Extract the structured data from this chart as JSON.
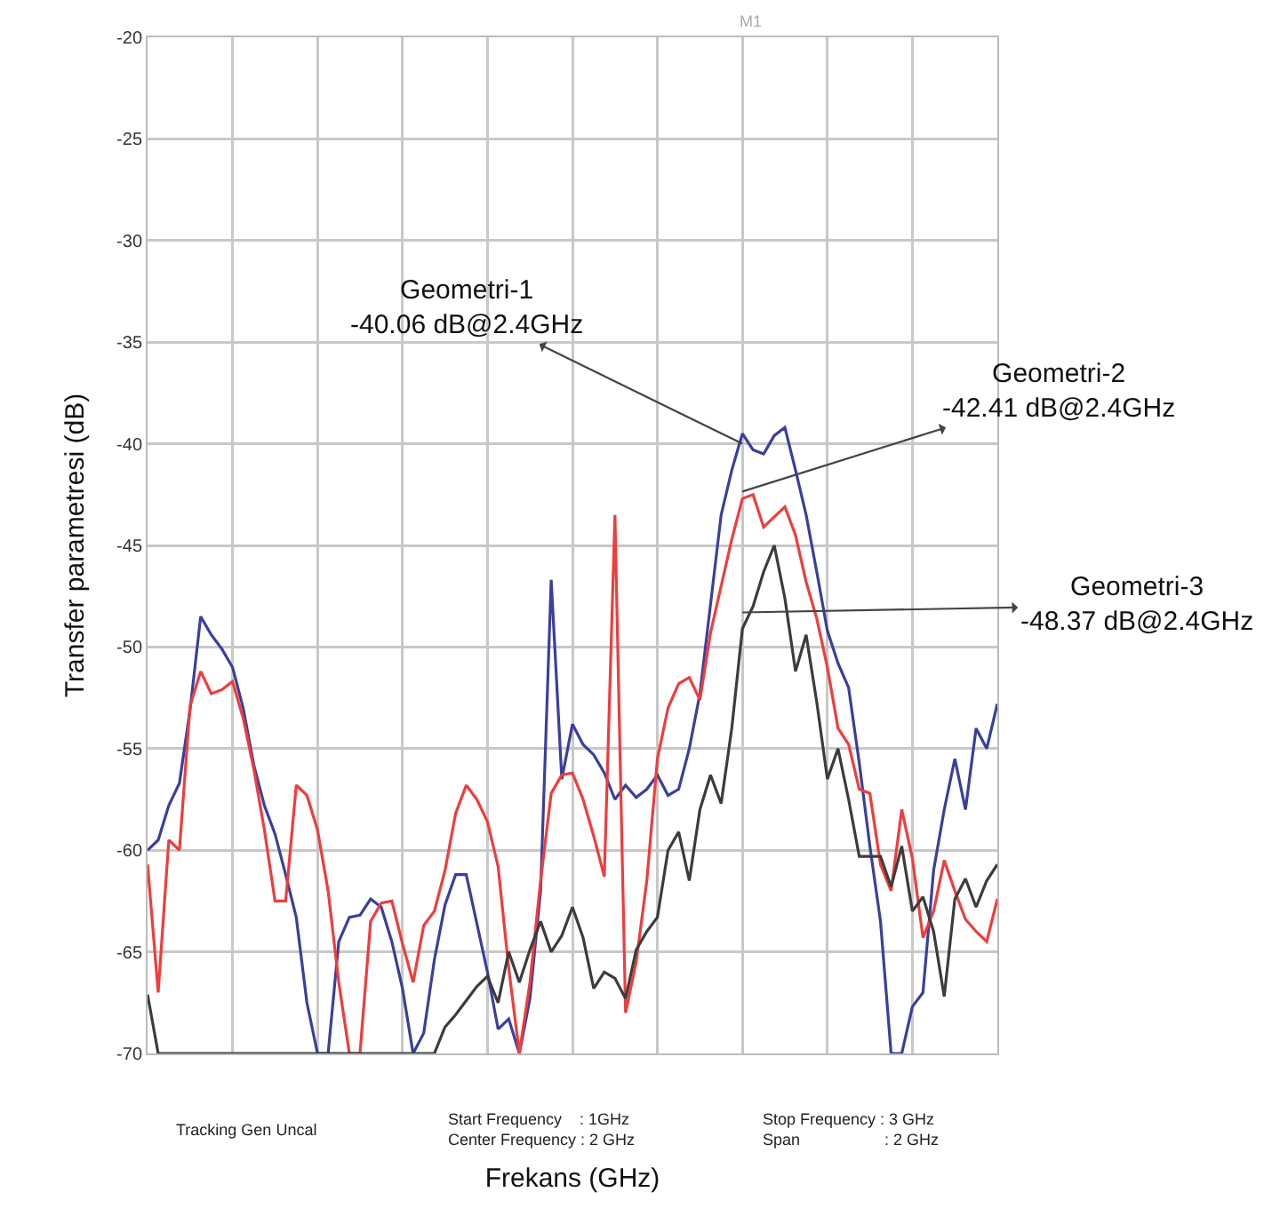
{
  "chart_data": {
    "type": "line",
    "xlabel": "Frekans (GHz)",
    "ylabel": "Transfer parametresi (dB)",
    "categories": [
      null,
      null,
      null,
      null,
      null,
      null,
      null,
      null,
      null,
      null,
      null,
      null,
      null,
      null,
      null,
      null,
      null,
      null,
      null,
      null,
      null,
      null,
      null,
      null,
      null,
      null,
      null,
      null,
      null,
      null,
      null,
      null,
      null,
      null,
      null,
      null,
      null,
      null,
      null,
      null,
      null,
      null,
      null,
      null,
      null,
      null,
      null,
      null,
      null,
      null,
      null,
      null,
      null,
      null,
      null,
      null,
      null,
      null,
      null,
      null,
      null,
      null,
      null,
      null,
      null,
      null,
      null,
      null,
      null,
      null,
      null,
      null,
      null,
      null,
      null,
      null,
      null,
      null,
      null,
      null,
      null
    ],
    "ylim": [
      -70,
      -20
    ],
    "yticks": [
      -20,
      -25,
      -30,
      -35,
      -40,
      -45,
      -50,
      -55,
      -60,
      -65,
      -70
    ],
    "tick_labels": "y",
    "grid": true,
    "series": [
      {
        "color": "#3a3f9e",
        "values": [
          -60,
          -59.5,
          -57.8,
          -56.7,
          -53.1,
          -48.5,
          -49.4,
          -50.1,
          -51,
          -53,
          -55.8,
          -57.8,
          -59.2,
          -61.2,
          -63.3,
          -67.5,
          -70,
          -70,
          -64.5,
          -63.3,
          -63.2,
          -62.4,
          -62.8,
          -64.5,
          -66.8,
          -70,
          -69,
          -65.4,
          -62.7,
          -61.2,
          -61.2,
          -63.6,
          -66,
          -68.8,
          -68.3,
          -70,
          -67.3,
          -62,
          -46.7,
          -56.5,
          -53.8,
          -54.8,
          -55.3,
          -56.2,
          -57.5,
          -56.8,
          -57.4,
          -57,
          -56.3,
          -57.3,
          -57,
          -55,
          -52.3,
          -47.9,
          -43.5,
          -41.3,
          -39.5,
          -40.3,
          -40.5,
          -39.6,
          -39.2,
          -41.3,
          -43.5,
          -46.3,
          -49.2,
          -50.8,
          -52,
          -55.7,
          -59.8,
          -63.5,
          -70,
          -70,
          -67.7,
          -67,
          -61,
          -58,
          -55.5,
          -58,
          -54,
          -55,
          -52.8
        ]
      },
      {
        "color": "#f03c3c",
        "values": [
          -60.7,
          -67,
          -59.5,
          -60,
          -52.9,
          -51.2,
          -52.3,
          -52.1,
          -51.7,
          -53.5,
          -56,
          -59,
          -62.5,
          -62.5,
          -56.8,
          -57.3,
          -59,
          -62,
          -66.5,
          -70,
          -70,
          -63.5,
          -62.6,
          -62.5,
          -64.6,
          -66.5,
          -63.7,
          -63,
          -61,
          -58.2,
          -56.8,
          -57.5,
          -58.6,
          -60.8,
          -65.8,
          -70,
          -66.5,
          -61.5,
          -57.2,
          -56.3,
          -56.2,
          -57.5,
          -59.3,
          -61.3,
          -43.5,
          -68,
          -65.5,
          -61.5,
          -55.5,
          -53,
          -51.8,
          -51.5,
          -52.6,
          -49.3,
          -47,
          -44.7,
          -42.7,
          -42.5,
          -44.1,
          -43.6,
          -43.1,
          -44.5,
          -46.8,
          -48.6,
          -51,
          -54,
          -54.8,
          -57,
          -57.2,
          -60.7,
          -62,
          -58,
          -60.4,
          -64.3,
          -63,
          -60.5,
          -62,
          -63.4,
          -64,
          -64.5,
          -62.4
        ]
      },
      {
        "color": "#3c3c3c",
        "values": [
          -67.1,
          -70,
          -70,
          -70,
          -70,
          -70,
          -70,
          -70,
          -70,
          -70,
          -70,
          -70,
          -70,
          -70,
          -70,
          -70,
          -70,
          -70,
          -70,
          -70,
          -70,
          -70,
          -70,
          -70,
          -70,
          -70,
          -70,
          -70,
          -68.7,
          -68.1,
          -67.4,
          -66.7,
          -66.2,
          -67.5,
          -65,
          -66.5,
          -64.9,
          -63.5,
          -65,
          -64.2,
          -62.8,
          -64.3,
          -66.8,
          -66,
          -66.3,
          -67.3,
          -64.9,
          -64,
          -63.3,
          -60,
          -59.1,
          -61.5,
          -58,
          -56.3,
          -57.7,
          -54,
          -49.1,
          -48,
          -46.3,
          -45,
          -47.6,
          -51.2,
          -49.4,
          -52.7,
          -56.5,
          -55,
          -57.5,
          -60.3,
          -60.3,
          -60.3,
          -61.8,
          -59.8,
          -63,
          -62.3,
          -64,
          -67.2,
          -62.4,
          -61.4,
          -62.8,
          -61.5,
          -60.7
        ]
      }
    ],
    "annotations": [
      "Geometri-1\n-40.06 dB@2.4GHz",
      "Geometri-2\n-42.41 dB@2.4GHz",
      "Geometri-3\n-48.37 dB@2.4GHz",
      "M1",
      "Tracking Gen Uncal",
      "Start Frequency    : 1GHz\nCenter Frequency : 2 GHz",
      "Stop Frequency : 3 GHz\nSpan                   : 2 GHz"
    ]
  }
}
